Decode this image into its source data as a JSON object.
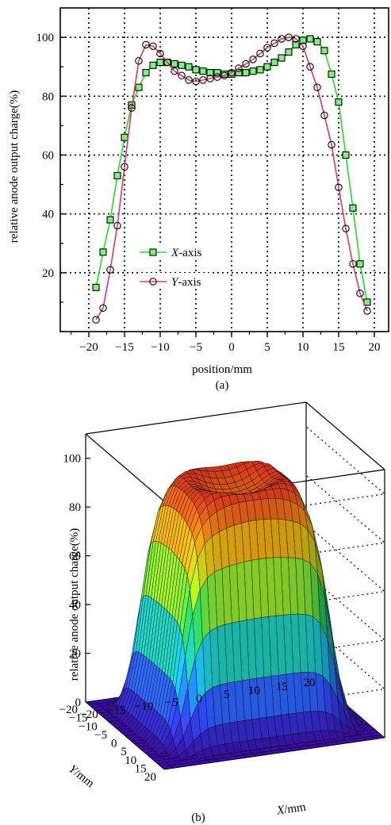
{
  "chart_data": [
    {
      "type": "line",
      "panel_label": "(a)",
      "xlabel": "position/mm",
      "ylabel": "relative anode output charge(%)",
      "xlim": [
        -24,
        22
      ],
      "ylim": [
        0,
        110
      ],
      "xticks": [
        -20,
        -15,
        -10,
        -5,
        0,
        5,
        10,
        15,
        20
      ],
      "yticks": [
        20,
        40,
        60,
        80,
        100
      ],
      "grid": true,
      "legend_placement": "center-left",
      "colors": {
        "x_series": "#22dd22",
        "y_series": "#e6336b",
        "marker_fill": "#7ef07e"
      },
      "series": [
        {
          "name_italic": "X",
          "name_suffix": "-axis",
          "marker": "square",
          "x": [
            -19,
            -18,
            -17,
            -16,
            -15,
            -14,
            -13,
            -12,
            -11,
            -10,
            -9,
            -8,
            -7,
            -6,
            -5,
            -4,
            -3,
            -2,
            -1,
            0,
            1,
            2,
            3,
            4,
            5,
            6,
            7,
            8,
            9,
            10,
            11,
            12,
            13,
            14,
            15,
            16,
            17,
            18,
            19
          ],
          "y": [
            15,
            27,
            38,
            53,
            66,
            77,
            83,
            88,
            90.5,
            91.5,
            91.5,
            91,
            90.5,
            90,
            89,
            88.5,
            88,
            88,
            87.5,
            87.5,
            88,
            88,
            88.5,
            89,
            90,
            91.5,
            93,
            95,
            97.5,
            99,
            99.5,
            98.5,
            95.5,
            87.5,
            78,
            60,
            42,
            23,
            10
          ]
        },
        {
          "name_italic": "Y",
          "name_suffix": "-axis",
          "marker": "circle",
          "x": [
            -19,
            -18,
            -17,
            -16,
            -15,
            -14,
            -13,
            -12,
            -11,
            -10,
            -9,
            -8,
            -7,
            -6,
            -5,
            -4,
            -3,
            -2,
            -1,
            0,
            1,
            2,
            3,
            4,
            5,
            6,
            7,
            8,
            9,
            10,
            11,
            12,
            13,
            14,
            15,
            16,
            17,
            18,
            19
          ],
          "y": [
            4,
            8,
            21,
            36,
            56,
            76,
            92,
            97.5,
            97,
            94.5,
            91.5,
            88.5,
            87,
            85.5,
            85,
            85.5,
            86,
            86.5,
            87,
            88,
            89.5,
            91,
            92.5,
            94.5,
            96.5,
            98,
            99.5,
            100,
            99.5,
            97,
            90,
            83,
            73.5,
            63.5,
            49,
            35,
            23,
            13,
            7
          ]
        }
      ]
    },
    {
      "type": "surface3d",
      "panel_label": "(b)",
      "xlabel_italic": "X",
      "xlabel_suffix": "/mm",
      "ylabel_italic": "Y",
      "ylabel_suffix": "/mm",
      "zlabel": "relative anode output charge(%)",
      "xlim": [
        -20,
        20
      ],
      "ylim": [
        -20,
        20
      ],
      "zlim": [
        0,
        110
      ],
      "xticks": [
        "−20",
        "−15",
        "−10",
        "−5",
        "0",
        "5",
        "10",
        "15",
        "20"
      ],
      "yticks": [
        "20",
        "15",
        "10",
        "5",
        "0",
        "−5",
        "−10",
        "−15",
        "−20"
      ],
      "zticks": [
        "0",
        "20",
        "40",
        "60",
        "80",
        "100"
      ],
      "plateau_z": 95,
      "grid": true,
      "colormap": [
        "#3a0ca3",
        "#2f4bff",
        "#17c3e6",
        "#22d160",
        "#b7e617",
        "#f2a20c",
        "#e8311f"
      ]
    }
  ]
}
